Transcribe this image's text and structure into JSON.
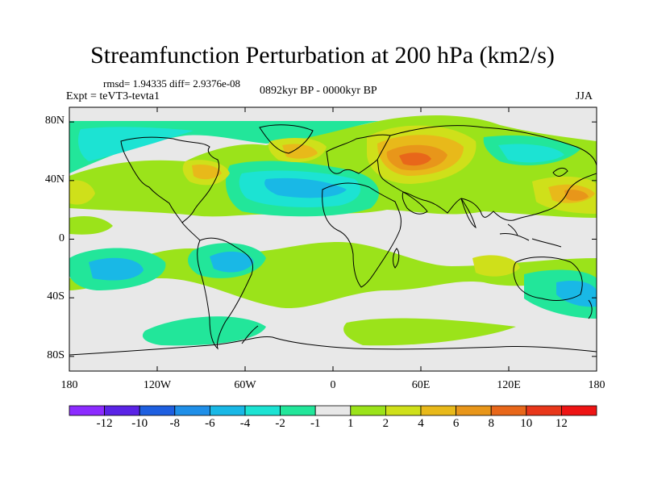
{
  "title": "Streamfunction Perturbation at 200 hPa (km2/s)",
  "stats": "rmsd= 1.94335 diff= 2.9376e-08",
  "experiment": "Expt = teVT3-tevta1",
  "period": "0892kyr BP - 0000kyr BP",
  "season": "JJA",
  "axes": {
    "y_ticks": [
      "80N",
      "40N",
      "0",
      "40S",
      "80S"
    ],
    "x_ticks": [
      "180",
      "120W",
      "60W",
      "0",
      "60E",
      "120E",
      "180"
    ]
  },
  "colorbar": {
    "labels": [
      "-12",
      "-10",
      "-8",
      "-6",
      "-4",
      "-2",
      "-1",
      "1",
      "2",
      "4",
      "6",
      "8",
      "10",
      "12"
    ],
    "colors": [
      "#8c2bff",
      "#5a23e6",
      "#1e5fe0",
      "#1f8fe8",
      "#19b8e6",
      "#1ce3d3",
      "#22e69a",
      "#e8e8e8",
      "#9be31a",
      "#cfe01a",
      "#e8b91a",
      "#e8961a",
      "#e8671a",
      "#e8371a",
      "#ee1414"
    ]
  },
  "colors": {
    "ocean_neutral": "#e8e8e8",
    "coast": "#000000"
  }
}
